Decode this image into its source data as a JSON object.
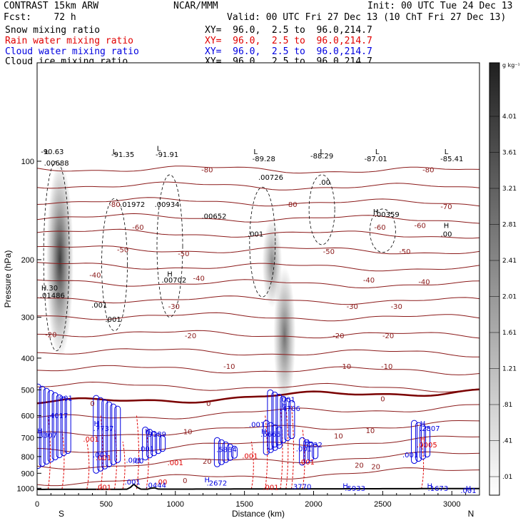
{
  "header": {
    "model": "CONTRAST 15km ARW",
    "org": "NCAR/MMM",
    "init": "Init: 00 UTC Tue 24 Dec 13",
    "fcst": "Fcst:    72 h",
    "valid": "Valid: 00 UTC Fri 27 Dec 13 (10 ChT Fri 27 Dec 13)"
  },
  "fields": [
    {
      "name": "Snow mixing ratio",
      "xy": "XY=  96.0,  2.5 to  96.0,214.7",
      "color": "#000000"
    },
    {
      "name": "Rain water mixing ratio",
      "xy": "XY=  96.0,  2.5 to  96.0,214.7",
      "color": "#e00000"
    },
    {
      "name": "Cloud water mixing ratio",
      "xy": "XY=  96.0,  2.5 to  96.0,214.7",
      "color": "#0000e0"
    },
    {
      "name": "Cloud ice mixing ratio",
      "xy": "XY=  96.0,  2.5 to  96.0,214.7",
      "color": "#000000"
    }
  ],
  "chart_data": {
    "type": "cross-section",
    "xlabel": "Distance (km)",
    "ylabel": "Pressure (hPa)",
    "xlim": [
      0,
      3200
    ],
    "ylim": [
      1050,
      50
    ],
    "y_scale": "log",
    "x_ticks": [
      0,
      500,
      1000,
      1500,
      2000,
      2500,
      3000
    ],
    "y_ticks": [
      100,
      200,
      300,
      400,
      500,
      600,
      700,
      800,
      900,
      1000
    ],
    "end_labels": {
      "left": "S",
      "right": "N"
    },
    "colorbar": {
      "unit": "g kg⁻¹",
      "labels": [
        "4.01",
        "3.61",
        "3.21",
        "2.81",
        "2.41",
        "2.01",
        "1.61",
        "1.21",
        ".81",
        ".41",
        ".01"
      ],
      "low_color": "#ffffff",
      "high_color": "#202020"
    },
    "temperature_contour_labels": [
      {
        "label": "-80",
        "x": 1230,
        "p": 108
      },
      {
        "label": "-80",
        "x": 2830,
        "p": 108
      },
      {
        "label": "-80",
        "x": 560,
        "p": 138
      },
      {
        "label": "-80",
        "x": 1840,
        "p": 138
      },
      {
        "label": "-70",
        "x": 2960,
        "p": 140
      },
      {
        "label": "-60",
        "x": 730,
        "p": 162
      },
      {
        "label": "-60",
        "x": 2770,
        "p": 160
      },
      {
        "label": "-60",
        "x": 2480,
        "p": 162
      },
      {
        "label": "-50",
        "x": 620,
        "p": 190
      },
      {
        "label": "-50",
        "x": 1060,
        "p": 195
      },
      {
        "label": "-50",
        "x": 2110,
        "p": 192
      },
      {
        "label": "-50",
        "x": 2660,
        "p": 192
      },
      {
        "label": "-40",
        "x": 420,
        "p": 227
      },
      {
        "label": "-40",
        "x": 1170,
        "p": 232
      },
      {
        "label": "-40",
        "x": 2400,
        "p": 235
      },
      {
        "label": "-40",
        "x": 2800,
        "p": 238
      },
      {
        "label": "-30",
        "x": 990,
        "p": 283
      },
      {
        "label": "-30",
        "x": 2280,
        "p": 283
      },
      {
        "label": "-30",
        "x": 2600,
        "p": 283
      },
      {
        "label": "-20",
        "x": 100,
        "p": 345
      },
      {
        "label": "-20",
        "x": 1110,
        "p": 348
      },
      {
        "label": "-20",
        "x": 2180,
        "p": 348
      },
      {
        "label": "-20",
        "x": 2540,
        "p": 348
      },
      {
        "label": "-10",
        "x": 1390,
        "p": 432
      },
      {
        "label": "-10",
        "x": 2230,
        "p": 432
      },
      {
        "label": "-10",
        "x": 2530,
        "p": 432
      },
      {
        "label": "0",
        "x": 400,
        "p": 560
      },
      {
        "label": "0",
        "x": 1240,
        "p": 560
      },
      {
        "label": "0",
        "x": 2500,
        "p": 542
      },
      {
        "label": "0",
        "x": 1070,
        "p": 965
      },
      {
        "label": "10",
        "x": 1090,
        "p": 683
      },
      {
        "label": "10",
        "x": 2410,
        "p": 678
      },
      {
        "label": "10",
        "x": 2180,
        "p": 705
      },
      {
        "label": "20",
        "x": 1230,
        "p": 842
      },
      {
        "label": "20",
        "x": 2330,
        "p": 865
      },
      {
        "label": "20",
        "x": 2450,
        "p": 875
      }
    ],
    "snow_extrema": [
      {
        "label": "L",
        "x": 70,
        "p": 95
      },
      {
        "label": "-90.63",
        "x": 110,
        "p": 95
      },
      {
        "label": "L",
        "x": 560,
        "p": 95
      },
      {
        "label": "-91.35",
        "x": 620,
        "p": 97
      },
      {
        "label": "L",
        "x": 880,
        "p": 93
      },
      {
        "label": "-91.91",
        "x": 940,
        "p": 97
      },
      {
        "label": "L",
        "x": 1580,
        "p": 95
      },
      {
        "label": "-89.28",
        "x": 1640,
        "p": 100
      },
      {
        "label": "L",
        "x": 2060,
        "p": 95
      },
      {
        "label": "-88.29",
        "x": 2060,
        "p": 98
      },
      {
        "label": "L",
        "x": 2460,
        "p": 95
      },
      {
        "label": "-87.01",
        "x": 2450,
        "p": 100
      },
      {
        "label": "L",
        "x": 2960,
        "p": 95
      },
      {
        "label": "-85.41",
        "x": 3000,
        "p": 100
      },
      {
        "label": ".00688",
        "x": 140,
        "p": 103
      },
      {
        "label": ".00726",
        "x": 1690,
        "p": 114
      },
      {
        "label": ".00",
        "x": 2080,
        "p": 118
      },
      {
        "label": ".01972",
        "x": 690,
        "p": 138
      },
      {
        "label": ".00934",
        "x": 940,
        "p": 138
      },
      {
        "label": ".00652",
        "x": 1280,
        "p": 150
      },
      {
        "label": ".001",
        "x": 1580,
        "p": 170
      },
      {
        "label": "H",
        "x": 2450,
        "p": 145
      },
      {
        "label": ".00359",
        "x": 2530,
        "p": 148
      },
      {
        "label": "H",
        "x": 2960,
        "p": 160
      },
      {
        "label": ".00",
        "x": 2960,
        "p": 170
      },
      {
        "label": "H",
        "x": 960,
        "p": 225
      },
      {
        "label": ".00702",
        "x": 990,
        "p": 235
      },
      {
        "label": "H.30",
        "x": 90,
        "p": 248
      },
      {
        "label": ".01486",
        "x": 110,
        "p": 262
      },
      {
        "label": ".001",
        "x": 450,
        "p": 280
      },
      {
        "label": ".001",
        "x": 550,
        "p": 310
      }
    ],
    "rain_extrema": [
      {
        "label": ".001",
        "x": 390,
        "p": 720
      },
      {
        "label": ".001",
        "x": 480,
        "p": 820
      },
      {
        "label": ".001",
        "x": 1000,
        "p": 850
      },
      {
        "label": ".001",
        "x": 1540,
        "p": 810
      },
      {
        "label": ".001",
        "x": 1950,
        "p": 845
      },
      {
        "label": ".00",
        "x": 900,
        "p": 975
      },
      {
        "label": ".001",
        "x": 480,
        "p": 1010
      },
      {
        "label": ".001",
        "x": 1690,
        "p": 1010
      },
      {
        "label": "H",
        "x": 2790,
        "p": 720
      },
      {
        "label": ".0005",
        "x": 2820,
        "p": 750
      }
    ],
    "cloud_water_extrema": [
      {
        "label": ".001",
        "x": 200,
        "p": 540
      },
      {
        "label": ".001",
        "x": 1810,
        "p": 545
      },
      {
        "label": "H",
        "x": 1790,
        "p": 568
      },
      {
        "label": ".4706",
        "x": 1830,
        "p": 580
      },
      {
        "label": ".4017",
        "x": 150,
        "p": 610
      },
      {
        "label": "H",
        "x": 430,
        "p": 645
      },
      {
        "label": ".7737",
        "x": 480,
        "p": 668
      },
      {
        "label": "H",
        "x": 2790,
        "p": 645
      },
      {
        "label": ".2807",
        "x": 2840,
        "p": 668
      },
      {
        "label": "H",
        "x": 20,
        "p": 680
      },
      {
        "label": ".3307",
        "x": 70,
        "p": 700
      },
      {
        "label": ".001",
        "x": 1590,
        "p": 650
      },
      {
        "label": "H",
        "x": 800,
        "p": 682
      },
      {
        "label": ".9189",
        "x": 860,
        "p": 695
      },
      {
        "label": "H",
        "x": 1640,
        "p": 682
      },
      {
        "label": ".6665",
        "x": 1690,
        "p": 695
      },
      {
        "label": "H",
        "x": 1950,
        "p": 735
      },
      {
        "label": ".5232",
        "x": 1990,
        "p": 750
      },
      {
        "label": ".001",
        "x": 1930,
        "p": 770
      },
      {
        "label": ".001",
        "x": 790,
        "p": 770
      },
      {
        "label": ".5864",
        "x": 1370,
        "p": 775
      },
      {
        "label": ".001",
        "x": 460,
        "p": 805
      },
      {
        "label": ".001",
        "x": 2700,
        "p": 805
      },
      {
        "label": ".001",
        "x": 700,
        "p": 835
      },
      {
        "label": ".00",
        "x": 730,
        "p": 840
      },
      {
        "label": ".001",
        "x": 690,
        "p": 975
      },
      {
        "label": ".0444",
        "x": 860,
        "p": 995
      },
      {
        "label": "H",
        "x": 1230,
        "p": 960
      },
      {
        "label": ".2672",
        "x": 1300,
        "p": 980
      },
      {
        "label": ".3770",
        "x": 1910,
        "p": 1005
      },
      {
        "label": "H",
        "x": 2230,
        "p": 1000
      },
      {
        "label": ".5933",
        "x": 2300,
        "p": 1020
      },
      {
        "label": "H",
        "x": 2840,
        "p": 1000
      },
      {
        "label": ".1673",
        "x": 2900,
        "p": 1020
      },
      {
        "label": "H",
        "x": 3120,
        "p": 1020
      },
      {
        "label": ".001",
        "x": 3120,
        "p": 1035
      }
    ],
    "snow_shading_columns": [
      {
        "x": 165,
        "p_top": 100,
        "p_bottom": 400,
        "max": 3.8
      },
      {
        "x": 1700,
        "p_top": 150,
        "p_bottom": 280,
        "max": 2.2
      },
      {
        "x": 1790,
        "p_top": 210,
        "p_bottom": 560,
        "max": 2.6
      }
    ]
  }
}
